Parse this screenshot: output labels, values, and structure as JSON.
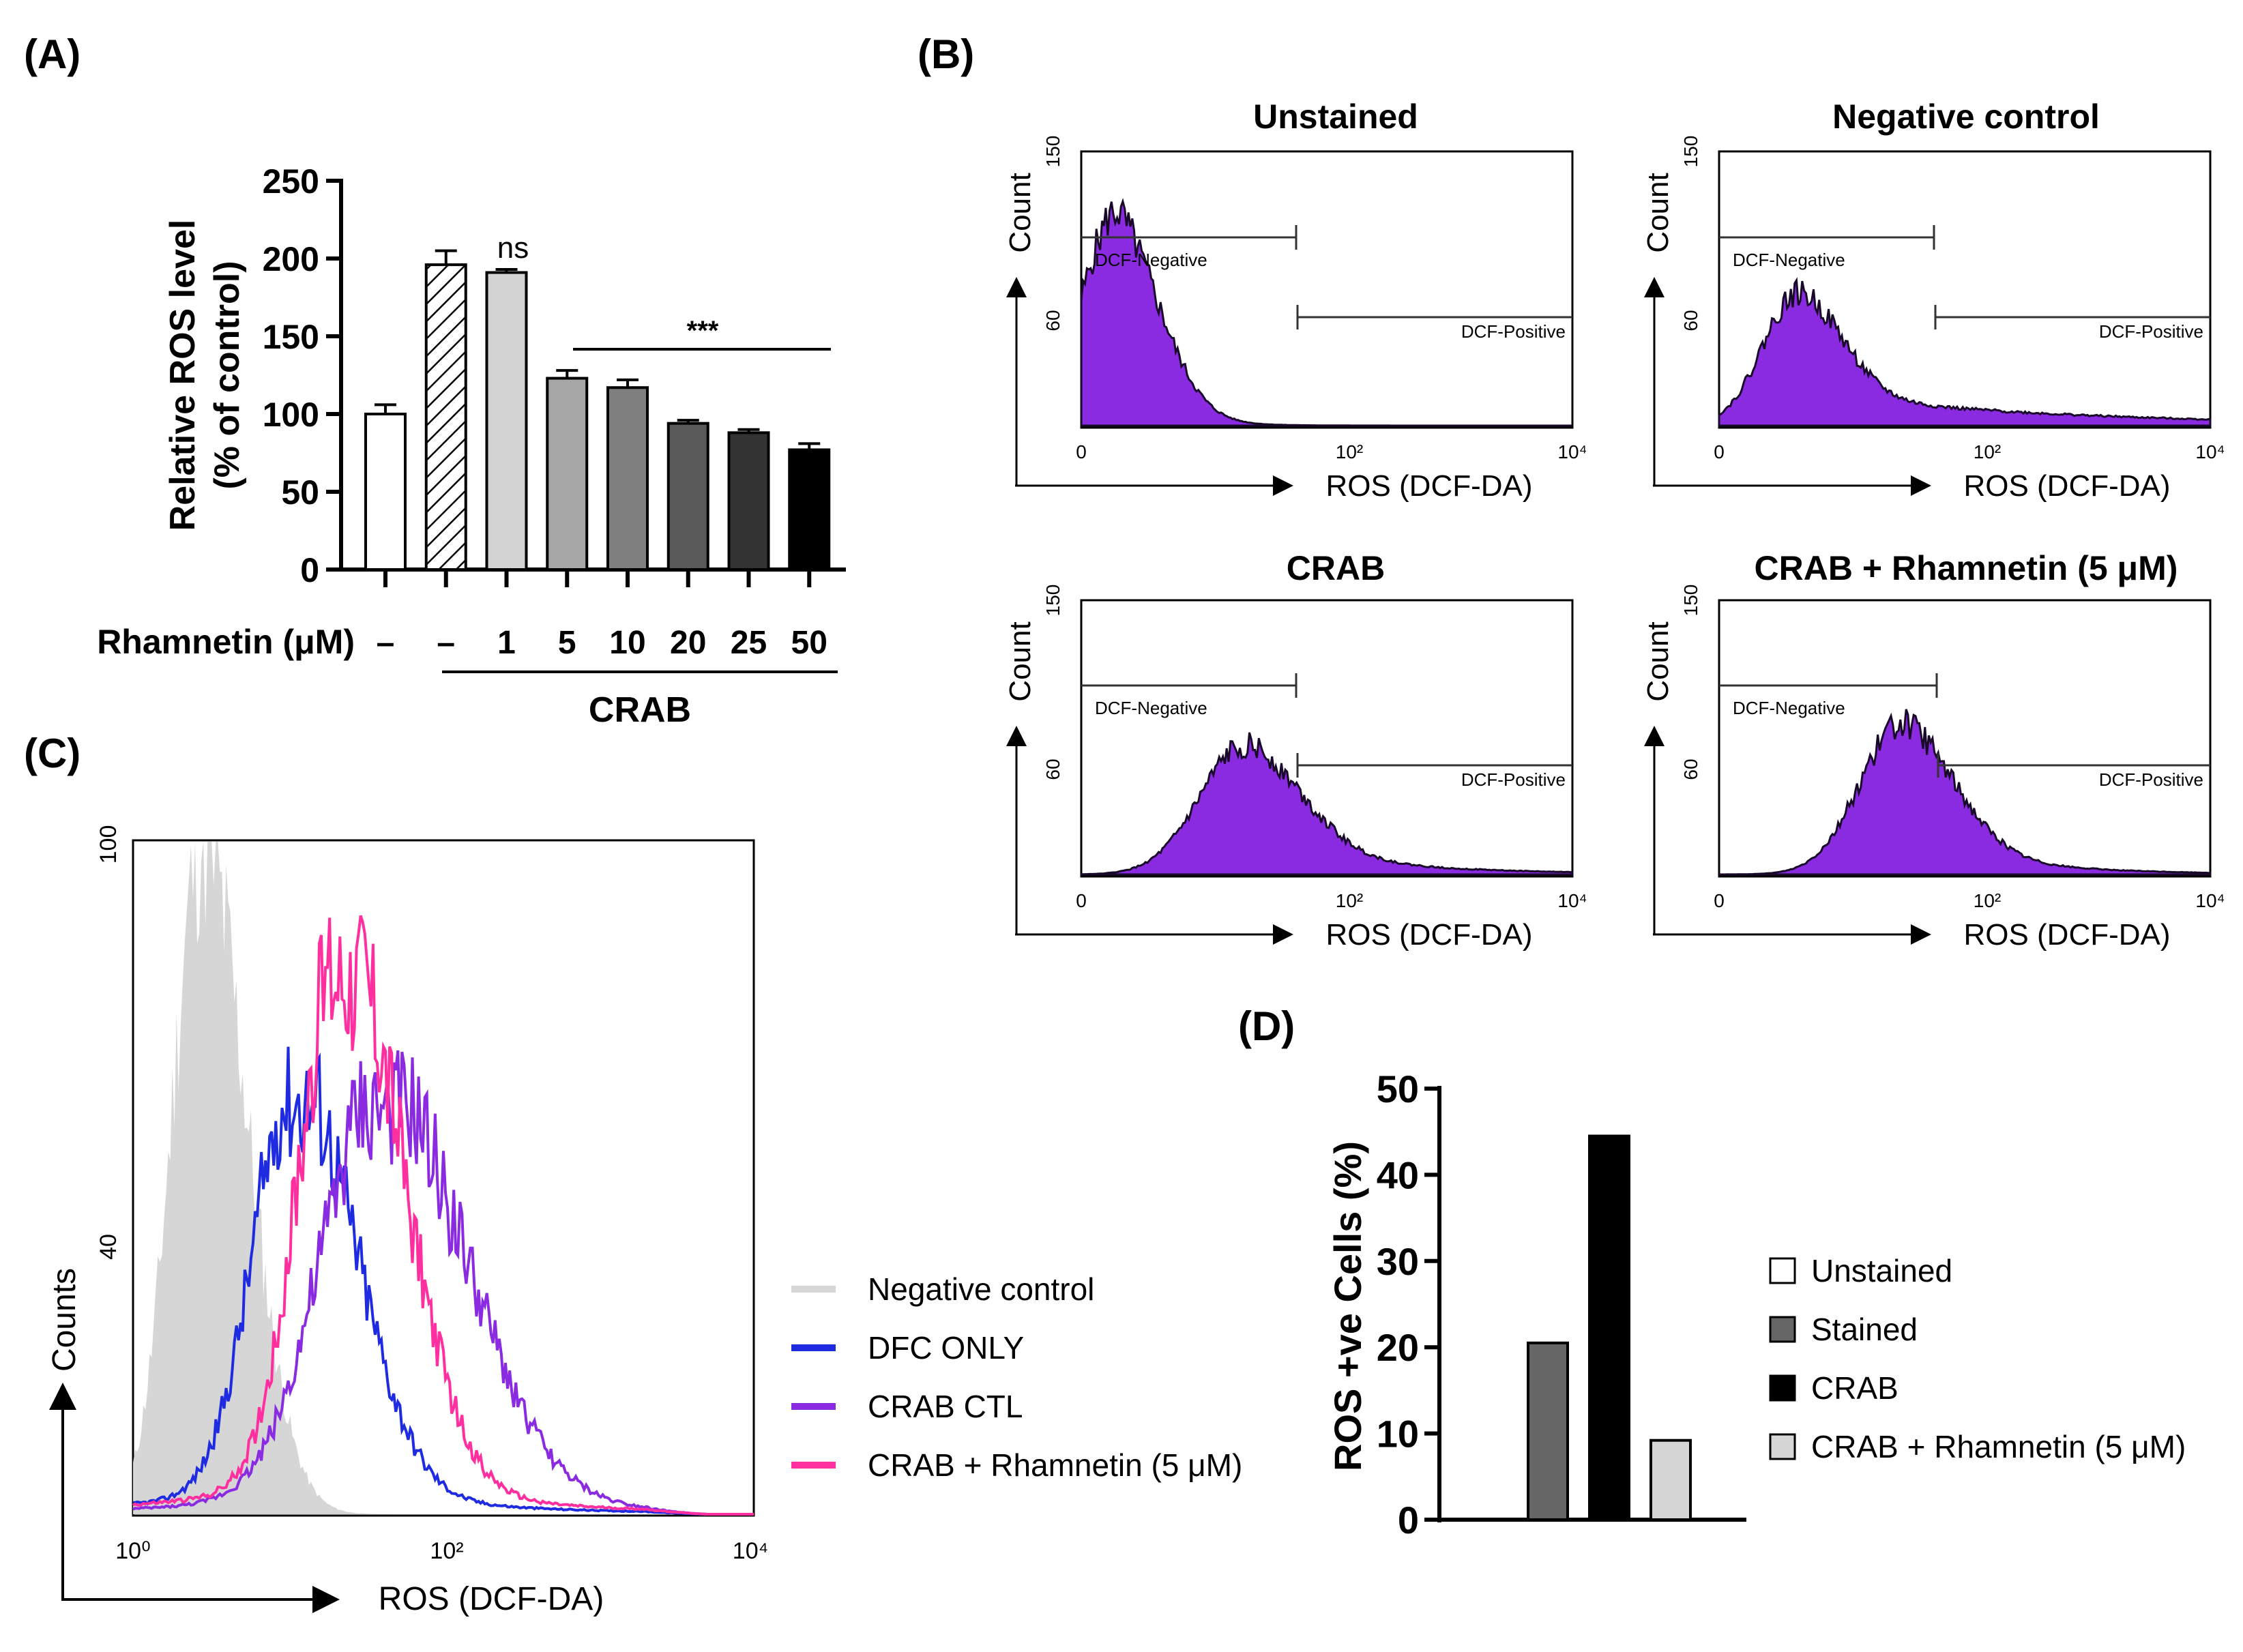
{
  "panels": {
    "A": "(A)",
    "B": "(B)",
    "C": "(C)",
    "D": "(D)"
  },
  "chart_data": [
    {
      "id": "A",
      "type": "bar",
      "ylabel_line1": "Relative ROS level",
      "ylabel_line2": "(% of control)",
      "ylim": [
        0,
        250
      ],
      "yticks": [
        0,
        50,
        100,
        150,
        200,
        250
      ],
      "xlabel": "Rhamnetin (μM)",
      "categories": [
        "–",
        "–",
        "1",
        "5",
        "10",
        "20",
        "25",
        "50"
      ],
      "values": [
        100,
        196,
        191,
        123,
        117,
        94,
        88,
        77
      ],
      "errors": [
        6,
        9,
        2,
        5,
        5,
        2,
        2,
        4
      ],
      "fills": [
        "#ffffff",
        "hatch",
        "#d3d3d3",
        "#a6a6a6",
        "#7f7f7f",
        "#595959",
        "#333333",
        "#000000"
      ],
      "group_label": "CRAB",
      "annotations": [
        {
          "text": "ns",
          "bar_index": 2
        },
        {
          "text": "***",
          "from_index": 3,
          "to_index": 7
        }
      ]
    },
    {
      "id": "B",
      "type": "histogram",
      "subplots": [
        {
          "title": "Unstained",
          "peak_log": 0.3,
          "spread": 0.35,
          "right_tail": 0.3,
          "gate_negative_label": "DCF-Negative",
          "gate_positive_label": "DCF-Positive"
        },
        {
          "title": "Negative control",
          "peak_log": 0.65,
          "spread": 0.35,
          "right_tail": 2.0,
          "gate_negative_label": "DCF-Negative",
          "gate_positive_label": "DCF-Positive"
        },
        {
          "title": "CRAB",
          "peak_log": 1.35,
          "spread": 0.45,
          "right_tail": 1.0,
          "gate_negative_label": "DCF-Negative",
          "gate_positive_label": "DCF-Positive"
        },
        {
          "title": "CRAB + Rhamnetin (5 μM)",
          "peak_log": 1.5,
          "spread": 0.42,
          "right_tail": 0.8,
          "gate_negative_label": "DCF-Negative",
          "gate_positive_label": "DCF-Positive"
        }
      ],
      "ylabel": "Count",
      "ytick_labels": [
        "150",
        "60"
      ],
      "xtick_labels": [
        "0",
        "10²",
        "10⁴"
      ],
      "xlabel": "ROS (DCF-DA)"
    },
    {
      "id": "C",
      "type": "histogram_overlay",
      "ylabel": "Counts",
      "ytick_labels": [
        "100",
        "40"
      ],
      "xtick_labels": [
        "10⁰",
        "10²",
        "10⁴"
      ],
      "xlabel": "ROS (DCF-DA)",
      "series": [
        {
          "name": "Negative control",
          "color": "#d6d6d6",
          "filled": true,
          "peak_log": 0.45,
          "peak": 100,
          "spread": 0.22
        },
        {
          "name": "DFC ONLY",
          "color": "#1f2be0",
          "filled": false,
          "peak_log": 1.05,
          "peak": 61,
          "spread": 0.3
        },
        {
          "name": "CRAB CTL",
          "color": "#8a2be2",
          "filled": false,
          "peak_log": 1.6,
          "peak": 60,
          "spread": 0.42
        },
        {
          "name": "CRAB + Rhamnetin (5 μM)",
          "color": "#ff2fa0",
          "filled": false,
          "peak_log": 1.35,
          "peak": 80,
          "spread": 0.3
        }
      ]
    },
    {
      "id": "D",
      "type": "bar",
      "ylabel": "ROS +ve Cells (%)",
      "ylim": [
        0,
        50
      ],
      "yticks": [
        0,
        10,
        20,
        30,
        40,
        50
      ],
      "categories": [
        "Unstained",
        "Stained",
        "CRAB",
        "CRAB + Rhamnetin (5 μM)"
      ],
      "values": [
        0,
        20.5,
        44.5,
        9.2
      ],
      "colors": [
        "#ffffff",
        "#666666",
        "#000000",
        "#d6d6d6"
      ]
    }
  ]
}
